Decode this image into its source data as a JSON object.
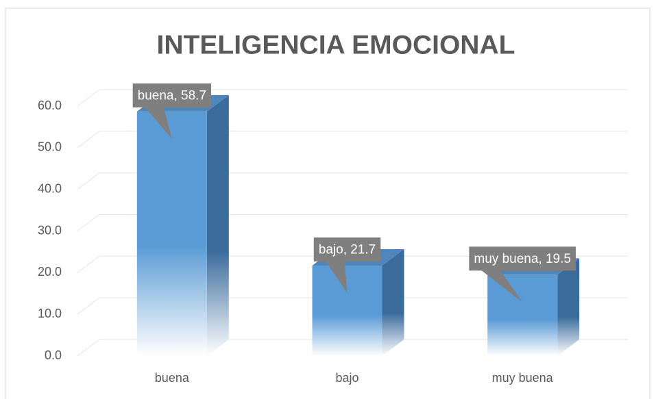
{
  "chart_data": {
    "type": "bar3d",
    "title": "INTELIGENCIA EMOCIONAL",
    "categories": [
      "buena",
      "bajo",
      "muy buena"
    ],
    "values": [
      58.7,
      21.7,
      19.5
    ],
    "value_labels": [
      "buena, 58.7",
      "bajo, 21.7",
      "muy buena, 19.5"
    ],
    "color": "#5b9bd5",
    "ylim": [
      0,
      60
    ],
    "yticks": [
      {
        "value": 0,
        "label": "0.0"
      },
      {
        "value": 10,
        "label": "10.0"
      },
      {
        "value": 20,
        "label": "20.0"
      },
      {
        "value": 30,
        "label": "30.0"
      },
      {
        "value": 40,
        "label": "40.0"
      },
      {
        "value": 50,
        "label": "50.0"
      },
      {
        "value": 60,
        "label": "60.0"
      }
    ],
    "grid": true
  }
}
